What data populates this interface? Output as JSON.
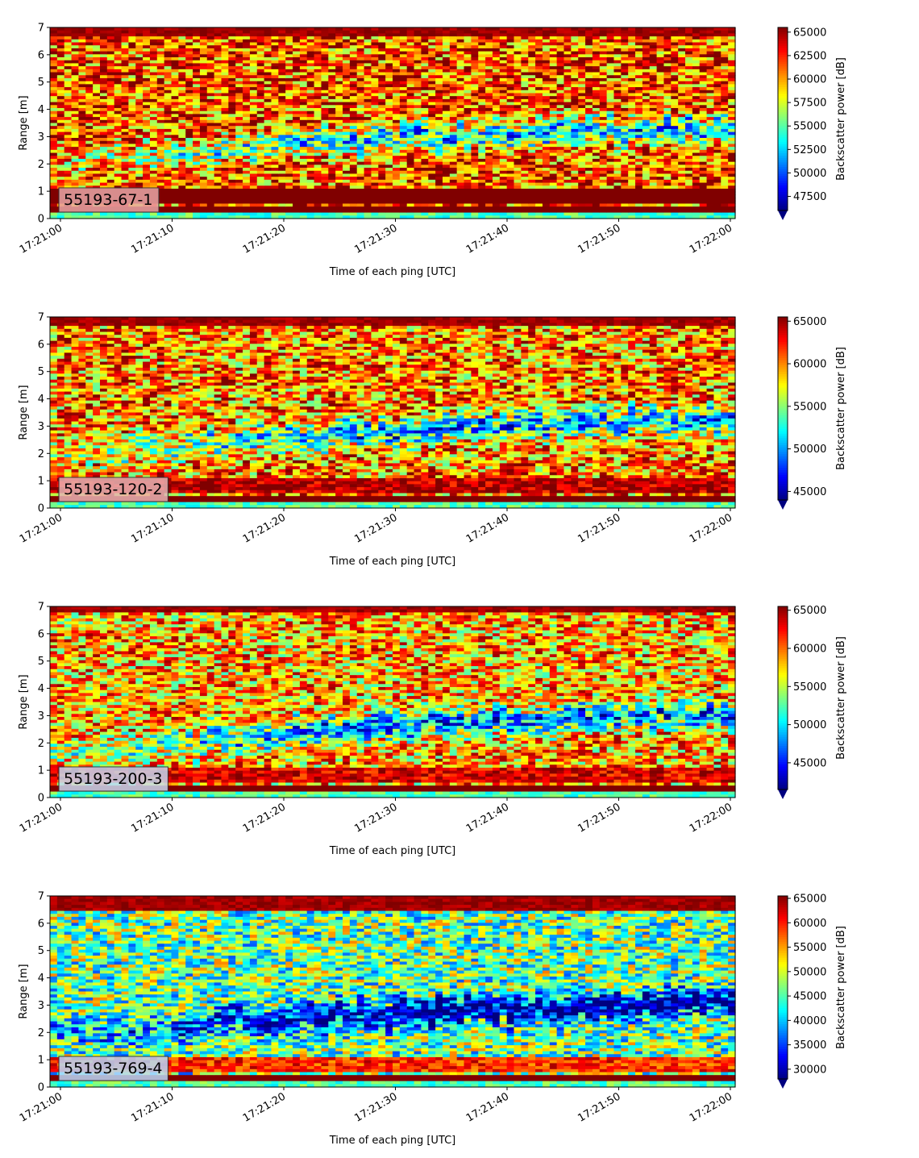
{
  "chart_data": [
    {
      "type": "heatmap",
      "label": "55193-67-1",
      "xlabel": "Time of each ping [UTC]",
      "ylabel": "Range [m]",
      "x_ticks": [
        "17:21:00",
        "17:21:10",
        "17:21:20",
        "17:21:30",
        "17:21:40",
        "17:21:50",
        "17:22:00"
      ],
      "y_ticks": [
        "0",
        "1",
        "2",
        "3",
        "4",
        "5",
        "6",
        "7"
      ],
      "ylim": [
        0,
        7
      ],
      "colorbar_label": "Backscatter power [dB]",
      "colorbar_ticks": [
        "47500",
        "50000",
        "52500",
        "55000",
        "57500",
        "60000",
        "62500",
        "65000"
      ],
      "clim": [
        46000,
        65500
      ],
      "colormap": "jet",
      "label_box_color": "#e8a6a6",
      "features": {
        "band_low": 1.05,
        "band_high": 0.2,
        "min_start": 2.0,
        "min_end": 3.3,
        "surface": 6.7,
        "bias": 0.55
      }
    },
    {
      "type": "heatmap",
      "label": "55193-120-2",
      "xlabel": "Time of each ping [UTC]",
      "ylabel": "Range [m]",
      "x_ticks": [
        "17:21:00",
        "17:21:10",
        "17:21:20",
        "17:21:30",
        "17:21:40",
        "17:21:50",
        "17:22:00"
      ],
      "y_ticks": [
        "0",
        "1",
        "2",
        "3",
        "4",
        "5",
        "6",
        "7"
      ],
      "ylim": [
        0,
        7
      ],
      "colorbar_label": "Backscatter power [dB]",
      "colorbar_ticks": [
        "45000",
        "50000",
        "55000",
        "60000",
        "65000"
      ],
      "clim": [
        44000,
        65500
      ],
      "colormap": "jet",
      "label_box_color": "#e8b3b3",
      "features": {
        "band_low": 0.55,
        "band_high": 0.1,
        "min_start": 1.9,
        "min_end": 3.2,
        "surface": 6.7,
        "bias": 0.4
      }
    },
    {
      "type": "heatmap",
      "label": "55193-200-3",
      "xlabel": "Time of each ping [UTC]",
      "ylabel": "Range [m]",
      "x_ticks": [
        "17:21:00",
        "17:21:10",
        "17:21:20",
        "17:21:30",
        "17:21:40",
        "17:21:50",
        "17:22:00"
      ],
      "y_ticks": [
        "0",
        "1",
        "2",
        "3",
        "4",
        "5",
        "6",
        "7"
      ],
      "ylim": [
        0,
        7
      ],
      "colorbar_label": "Backscatter power [dB]",
      "colorbar_ticks": [
        "45000",
        "50000",
        "55000",
        "60000",
        "65000"
      ],
      "clim": [
        41500,
        65500
      ],
      "colormap": "jet",
      "label_box_color": "#c8d8f0",
      "features": {
        "band_low": 0.45,
        "band_high": 0.1,
        "min_start": 1.6,
        "min_end": 3.0,
        "surface": 6.8,
        "bias": 0.3
      }
    },
    {
      "type": "heatmap",
      "label": "55193-769-4",
      "xlabel": "Time of each ping [UTC]",
      "ylabel": "Range [m]",
      "x_ticks": [
        "17:21:00",
        "17:21:10",
        "17:21:20",
        "17:21:30",
        "17:21:40",
        "17:21:50",
        "17:22:00"
      ],
      "y_ticks": [
        "0",
        "1",
        "2",
        "3",
        "4",
        "5",
        "6",
        "7"
      ],
      "ylim": [
        0,
        7
      ],
      "colorbar_label": "Backscatter power [dB]",
      "colorbar_ticks": [
        "30000",
        "35000",
        "40000",
        "45000",
        "50000",
        "55000",
        "60000",
        "65000"
      ],
      "clim": [
        28000,
        65500
      ],
      "colormap": "jet",
      "label_box_color": "#b8d8f8",
      "features": {
        "band_low": 0.3,
        "band_high": 0.05,
        "min_start": 2.0,
        "min_end": 3.0,
        "surface": 6.5,
        "bias": -0.35
      }
    }
  ]
}
